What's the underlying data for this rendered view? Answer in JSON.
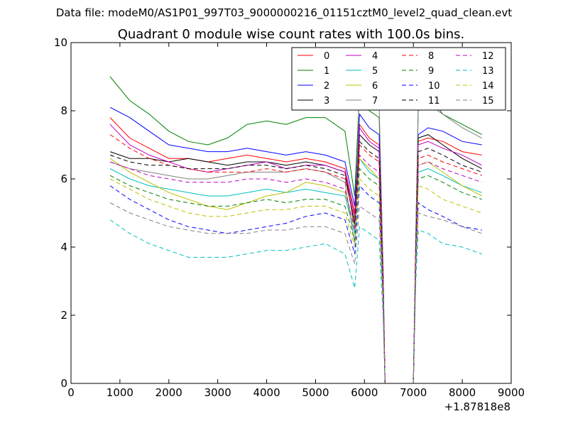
{
  "header": {
    "data_file": "Data file: modeM0/AS1P01_997T03_9000000216_01151cztM0_level2_quad_clean.evt"
  },
  "chart_data": {
    "type": "line",
    "title": "Quadrant 0 module wise count rates with 100.0s bins.",
    "xlabel": "",
    "ylabel": "",
    "x_offset_label": "+1.87818e8",
    "xlim": [
      0,
      9000
    ],
    "ylim": [
      0,
      10
    ],
    "xticks": [
      "0",
      "1000",
      "2000",
      "3000",
      "4000",
      "5000",
      "6000",
      "7000",
      "8000",
      "9000"
    ],
    "yticks": [
      "0",
      "2",
      "4",
      "6",
      "8",
      "10"
    ],
    "legend_position": "top-right",
    "x": [
      800,
      1200,
      1600,
      2000,
      2400,
      2800,
      3200,
      3600,
      4000,
      4400,
      4800,
      5200,
      5600,
      5800,
      5900,
      6100,
      6300,
      6380,
      6420,
      6450,
      7000,
      7050,
      7100,
      7300,
      7600,
      8000,
      8400
    ],
    "series": [
      {
        "name": "0",
        "color": "#ff0000",
        "dash": "solid",
        "values": [
          7.8,
          7.2,
          6.9,
          6.6,
          6.6,
          6.5,
          6.6,
          6.7,
          6.6,
          6.5,
          6.6,
          6.5,
          6.3,
          5.0,
          7.6,
          7.2,
          7.0,
          3.0,
          0.0,
          0.0,
          0.0,
          4.0,
          7.1,
          7.2,
          7.1,
          6.8,
          6.7
        ]
      },
      {
        "name": "1",
        "color": "#008000",
        "dash": "solid",
        "values": [
          9.0,
          8.3,
          7.9,
          7.4,
          7.1,
          7.0,
          7.2,
          7.6,
          7.7,
          7.6,
          7.8,
          7.8,
          7.4,
          5.5,
          8.6,
          8.0,
          7.8,
          3.5,
          0.0,
          0.0,
          0.0,
          4.5,
          8.2,
          8.5,
          7.9,
          7.6,
          7.3
        ]
      },
      {
        "name": "2",
        "color": "#0000ff",
        "dash": "solid",
        "values": [
          8.1,
          7.8,
          7.4,
          7.0,
          6.9,
          6.8,
          6.8,
          6.9,
          6.8,
          6.7,
          6.8,
          6.7,
          6.5,
          5.2,
          7.9,
          7.5,
          7.3,
          3.2,
          0.0,
          0.0,
          0.0,
          4.2,
          7.3,
          7.5,
          7.4,
          7.1,
          7.0
        ]
      },
      {
        "name": "3",
        "color": "#000000",
        "dash": "solid",
        "values": [
          6.8,
          6.6,
          6.6,
          6.5,
          6.6,
          6.5,
          6.4,
          6.5,
          6.5,
          6.4,
          6.5,
          6.4,
          6.2,
          4.6,
          7.3,
          7.0,
          6.8,
          3.0,
          0.0,
          0.0,
          0.0,
          4.0,
          7.2,
          7.3,
          7.0,
          6.6,
          6.3
        ]
      },
      {
        "name": "4",
        "color": "#bf00bf",
        "dash": "solid",
        "values": [
          7.6,
          7.0,
          6.7,
          6.5,
          6.3,
          6.2,
          6.3,
          6.4,
          6.5,
          6.3,
          6.4,
          6.4,
          6.2,
          4.9,
          7.5,
          7.1,
          6.9,
          3.0,
          0.0,
          0.0,
          0.0,
          4.0,
          7.0,
          7.1,
          6.9,
          6.7,
          6.4
        ]
      },
      {
        "name": "5",
        "color": "#00bfbf",
        "dash": "solid",
        "values": [
          6.3,
          6.0,
          5.8,
          5.7,
          5.6,
          5.5,
          5.5,
          5.6,
          5.7,
          5.6,
          5.7,
          5.6,
          5.5,
          4.4,
          6.6,
          6.2,
          6.0,
          2.8,
          0.0,
          0.0,
          0.0,
          3.8,
          6.2,
          6.3,
          6.1,
          5.8,
          5.6
        ]
      },
      {
        "name": "6",
        "color": "#bfbf00",
        "dash": "solid",
        "values": [
          6.6,
          6.2,
          5.9,
          5.6,
          5.4,
          5.2,
          5.1,
          5.3,
          5.5,
          5.6,
          5.9,
          5.8,
          5.6,
          4.6,
          6.6,
          6.3,
          6.0,
          2.8,
          0.0,
          0.0,
          0.0,
          3.9,
          6.4,
          6.5,
          6.2,
          5.8,
          5.5
        ]
      },
      {
        "name": "7",
        "color": "#808080",
        "dash": "solid",
        "values": [
          6.5,
          6.3,
          6.2,
          6.1,
          6.0,
          6.0,
          6.1,
          6.2,
          6.2,
          6.2,
          6.3,
          6.2,
          5.9,
          4.1,
          8.8,
          8.4,
          8.2,
          3.5,
          0.0,
          0.0,
          0.0,
          4.5,
          8.0,
          8.2,
          7.9,
          7.5,
          7.2
        ]
      },
      {
        "name": "8",
        "color": "#ff0000",
        "dash": "dashed",
        "values": [
          7.3,
          6.9,
          6.6,
          6.4,
          6.3,
          6.2,
          6.2,
          6.2,
          6.3,
          6.2,
          6.3,
          6.2,
          6.0,
          4.8,
          7.0,
          6.7,
          6.5,
          3.0,
          0.0,
          0.0,
          0.0,
          4.0,
          6.6,
          6.7,
          6.5,
          6.3,
          6.1
        ]
      },
      {
        "name": "9",
        "color": "#008000",
        "dash": "dashed",
        "values": [
          6.1,
          5.8,
          5.6,
          5.4,
          5.3,
          5.2,
          5.2,
          5.3,
          5.4,
          5.3,
          5.4,
          5.4,
          5.2,
          4.2,
          6.3,
          6.0,
          5.8,
          2.7,
          0.0,
          0.0,
          0.0,
          3.7,
          6.0,
          6.1,
          5.9,
          5.6,
          5.4
        ]
      },
      {
        "name": "10",
        "color": "#0000ff",
        "dash": "dashed",
        "values": [
          5.8,
          5.4,
          5.1,
          4.8,
          4.6,
          4.5,
          4.4,
          4.5,
          4.6,
          4.7,
          4.9,
          5.0,
          4.8,
          3.8,
          5.8,
          5.5,
          5.3,
          2.5,
          0.0,
          0.0,
          0.0,
          3.5,
          5.3,
          5.1,
          4.9,
          4.6,
          4.5
        ]
      },
      {
        "name": "11",
        "color": "#000000",
        "dash": "dashed",
        "values": [
          6.7,
          6.5,
          6.4,
          6.4,
          6.3,
          6.3,
          6.3,
          6.4,
          6.4,
          6.3,
          6.4,
          6.3,
          6.1,
          4.7,
          7.1,
          6.8,
          6.6,
          3.0,
          0.0,
          0.0,
          0.0,
          4.0,
          6.8,
          6.9,
          6.7,
          6.4,
          6.2
        ]
      },
      {
        "name": "12",
        "color": "#bf00bf",
        "dash": "dashed",
        "values": [
          6.5,
          6.3,
          6.1,
          6.0,
          5.9,
          5.9,
          5.9,
          6.0,
          6.0,
          5.9,
          6.0,
          5.9,
          5.7,
          4.5,
          6.7,
          6.4,
          6.2,
          2.9,
          0.0,
          0.0,
          0.0,
          3.9,
          6.4,
          6.5,
          6.3,
          6.1,
          5.9
        ]
      },
      {
        "name": "13",
        "color": "#00bfbf",
        "dash": "dashed",
        "values": [
          4.8,
          4.4,
          4.1,
          3.9,
          3.7,
          3.7,
          3.7,
          3.8,
          3.9,
          3.9,
          4.0,
          4.1,
          3.8,
          2.8,
          4.6,
          4.4,
          4.2,
          2.0,
          0.0,
          0.0,
          0.0,
          3.0,
          4.5,
          4.4,
          4.1,
          4.0,
          3.8
        ]
      },
      {
        "name": "14",
        "color": "#bfbf00",
        "dash": "dashed",
        "values": [
          6.0,
          5.7,
          5.4,
          5.2,
          5.0,
          4.9,
          4.9,
          5.0,
          5.1,
          5.1,
          5.2,
          5.2,
          5.0,
          4.0,
          6.0,
          5.7,
          5.5,
          2.6,
          0.0,
          0.0,
          0.0,
          3.6,
          5.8,
          5.7,
          5.4,
          5.2,
          5.0
        ]
      },
      {
        "name": "15",
        "color": "#808080",
        "dash": "dashed",
        "values": [
          5.3,
          5.0,
          4.8,
          4.6,
          4.5,
          4.4,
          4.4,
          4.4,
          4.5,
          4.5,
          4.6,
          4.6,
          4.4,
          3.5,
          5.2,
          5.0,
          4.8,
          2.3,
          0.0,
          0.0,
          0.0,
          3.3,
          5.0,
          4.9,
          4.8,
          4.6,
          4.4
        ]
      }
    ]
  }
}
